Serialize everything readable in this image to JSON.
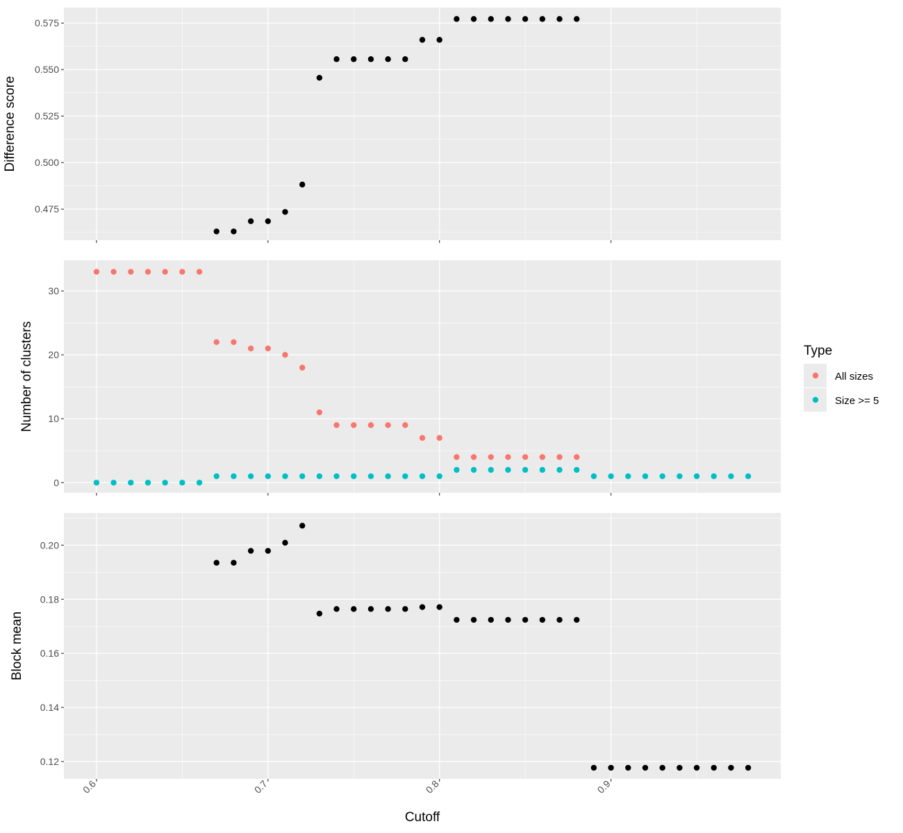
{
  "chart_data": [
    {
      "type": "scatter",
      "xlabel": "Cutoff",
      "ylabel": "Difference score",
      "x_ticks": [
        "0.6",
        "0.7",
        "0.8",
        "0.9"
      ],
      "y_ticks": [
        "0.475",
        "0.500",
        "0.525",
        "0.550",
        "0.575"
      ],
      "xlim": [
        0.581,
        0.999
      ],
      "ylim": [
        0.4583,
        0.5833
      ],
      "grid": true,
      "series": [
        {
          "color": "#000000",
          "x": [
            0.67,
            0.68,
            0.69,
            0.7,
            0.71,
            0.72,
            0.73,
            0.74,
            0.75,
            0.76,
            0.77,
            0.78,
            0.79,
            0.8,
            0.81,
            0.82,
            0.83,
            0.84,
            0.85,
            0.86,
            0.87,
            0.88
          ],
          "y": [
            0.463,
            0.463,
            0.4685,
            0.4685,
            0.4735,
            0.4882,
            0.5456,
            0.5556,
            0.5556,
            0.5556,
            0.5556,
            0.5556,
            0.566,
            0.566,
            0.5772,
            0.5772,
            0.5772,
            0.5772,
            0.5772,
            0.5772,
            0.5772,
            0.5772
          ]
        }
      ]
    },
    {
      "type": "scatter",
      "xlabel": "Cutoff",
      "ylabel": "Number of clusters",
      "x_ticks": [
        "0.6",
        "0.7",
        "0.8",
        "0.9"
      ],
      "y_ticks": [
        "0",
        "10",
        "20",
        "30"
      ],
      "xlim": [
        0.581,
        0.999
      ],
      "ylim": [
        -1.6,
        34.8
      ],
      "grid": true,
      "legend": {
        "title": "Type",
        "position": "right",
        "entries": [
          "All sizes",
          "Size >= 5"
        ]
      },
      "series": [
        {
          "name": "All sizes",
          "color": "#F8766D",
          "x": [
            0.6,
            0.61,
            0.62,
            0.63,
            0.64,
            0.65,
            0.66,
            0.67,
            0.68,
            0.69,
            0.7,
            0.71,
            0.72,
            0.73,
            0.74,
            0.75,
            0.76,
            0.77,
            0.78,
            0.79,
            0.8,
            0.81,
            0.82,
            0.83,
            0.84,
            0.85,
            0.86,
            0.87,
            0.88
          ],
          "y": [
            33,
            33,
            33,
            33,
            33,
            33,
            33,
            22,
            22,
            21,
            21,
            20,
            18,
            11,
            9,
            9,
            9,
            9,
            9,
            7,
            7,
            4,
            4,
            4,
            4,
            4,
            4,
            4,
            4
          ]
        },
        {
          "name": "Size >= 5",
          "color": "#00BFC4",
          "x": [
            0.6,
            0.61,
            0.62,
            0.63,
            0.64,
            0.65,
            0.66,
            0.67,
            0.68,
            0.69,
            0.7,
            0.71,
            0.72,
            0.73,
            0.74,
            0.75,
            0.76,
            0.77,
            0.78,
            0.79,
            0.8,
            0.81,
            0.82,
            0.83,
            0.84,
            0.85,
            0.86,
            0.87,
            0.88,
            0.89,
            0.9,
            0.91,
            0.92,
            0.93,
            0.94,
            0.95,
            0.96,
            0.97,
            0.98
          ],
          "y": [
            0,
            0,
            0,
            0,
            0,
            0,
            0,
            1,
            1,
            1,
            1,
            1,
            1,
            1,
            1,
            1,
            1,
            1,
            1,
            1,
            1,
            2,
            2,
            2,
            2,
            2,
            2,
            2,
            2,
            1,
            1,
            1,
            1,
            1,
            1,
            1,
            1,
            1,
            1
          ]
        }
      ]
    },
    {
      "type": "scatter",
      "xlabel": "Cutoff",
      "ylabel": "Block mean",
      "x_ticks": [
        "0.6",
        "0.7",
        "0.8",
        "0.9"
      ],
      "y_ticks": [
        "0.12",
        "0.14",
        "0.16",
        "0.18",
        "0.20"
      ],
      "xlim": [
        0.581,
        0.999
      ],
      "ylim": [
        0.1136,
        0.2119
      ],
      "grid": true,
      "series": [
        {
          "color": "#000000",
          "x": [
            0.67,
            0.68,
            0.69,
            0.7,
            0.71,
            0.72,
            0.73,
            0.74,
            0.75,
            0.76,
            0.77,
            0.78,
            0.79,
            0.8,
            0.81,
            0.82,
            0.83,
            0.84,
            0.85,
            0.86,
            0.87,
            0.88,
            0.89,
            0.9,
            0.91,
            0.92,
            0.93,
            0.94,
            0.95,
            0.96,
            0.97,
            0.98
          ],
          "y": [
            0.1935,
            0.1935,
            0.1979,
            0.1979,
            0.2009,
            0.2072,
            0.1747,
            0.1764,
            0.1764,
            0.1764,
            0.1764,
            0.1764,
            0.1771,
            0.1771,
            0.1724,
            0.1724,
            0.1724,
            0.1724,
            0.1724,
            0.1724,
            0.1724,
            0.1724,
            0.1177,
            0.1177,
            0.1177,
            0.1177,
            0.1177,
            0.1177,
            0.1177,
            0.1177,
            0.1177,
            0.1177
          ]
        }
      ]
    }
  ]
}
